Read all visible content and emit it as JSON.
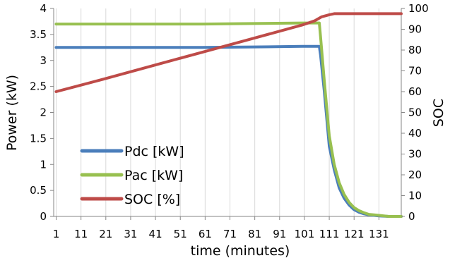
{
  "chart_data": {
    "type": "line",
    "title": "",
    "xlabel": "time   (minutes)",
    "ylabel": "Power   (kW)",
    "y2label": "SOC",
    "xlim": [
      0,
      140
    ],
    "ylim": [
      0,
      4
    ],
    "y2lim": [
      0,
      100
    ],
    "x_ticks": [
      1,
      11,
      21,
      31,
      41,
      51,
      61,
      71,
      81,
      91,
      101,
      111,
      121,
      131
    ],
    "y_ticks": [
      "0",
      "0.5",
      "1",
      "1.5",
      "2",
      "2.5",
      "3",
      "3.5",
      "4"
    ],
    "y2_ticks": [
      "0",
      "10",
      "20",
      "30",
      "40",
      "50",
      "60",
      "70",
      "80",
      "90",
      "100"
    ],
    "grid": "vertical",
    "legend_position": "bottom-left",
    "series": [
      {
        "name": "Pdc [kW]",
        "axis": "left",
        "color": "#4a7ebb",
        "x": [
          1,
          20,
          40,
          60,
          80,
          100,
          107,
          107.5,
          109,
          111,
          113,
          115,
          117,
          119,
          121,
          123,
          125,
          127,
          129,
          131,
          135,
          140
        ],
        "y": [
          3.25,
          3.25,
          3.25,
          3.25,
          3.26,
          3.27,
          3.27,
          3.1,
          2.4,
          1.35,
          0.9,
          0.55,
          0.35,
          0.22,
          0.13,
          0.08,
          0.05,
          0.03,
          0.02,
          0.01,
          0.0,
          0.0
        ]
      },
      {
        "name": "Pac [kW]",
        "axis": "left",
        "color": "#98c050",
        "x": [
          1,
          20,
          40,
          60,
          80,
          100,
          107,
          107.5,
          109,
          111,
          113,
          115,
          117,
          119,
          121,
          123,
          125,
          127,
          129,
          131,
          135,
          140
        ],
        "y": [
          3.7,
          3.7,
          3.7,
          3.7,
          3.71,
          3.72,
          3.72,
          3.45,
          2.6,
          1.55,
          1.0,
          0.65,
          0.42,
          0.27,
          0.17,
          0.11,
          0.07,
          0.04,
          0.03,
          0.02,
          0.0,
          0.0
        ]
      },
      {
        "name": "SOC [%]",
        "axis": "right",
        "color": "#be4b48",
        "x": [
          1,
          20,
          40,
          60,
          80,
          100,
          105,
          108,
          111,
          113,
          115,
          120,
          125,
          130,
          135,
          140
        ],
        "y": [
          60,
          66,
          72.5,
          79,
          85.5,
          92,
          94,
          96,
          97,
          97.5,
          97.5,
          97.5,
          97.5,
          97.5,
          97.5,
          97.5
        ]
      }
    ]
  }
}
